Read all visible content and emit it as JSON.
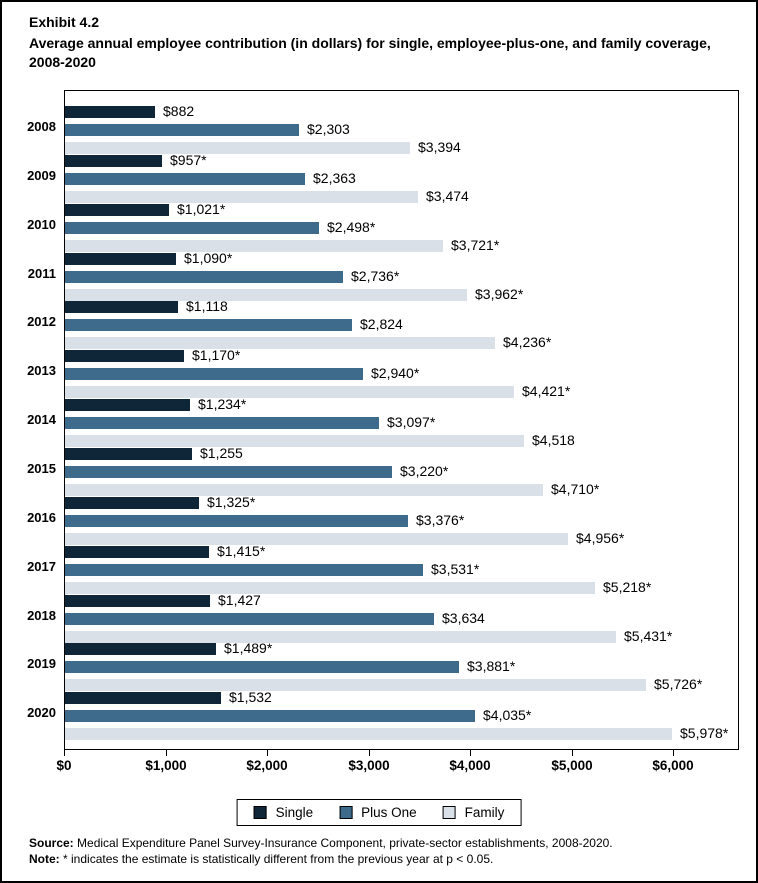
{
  "header": {
    "exhibit": "Exhibit 4.2",
    "title": "Average annual employee contribution (in dollars) for single, employee-plus-one, and family coverage, 2008-2020"
  },
  "chart_data": {
    "type": "bar",
    "orientation": "horizontal",
    "title": "Average annual employee contribution (in dollars) for single, employee-plus-one, and family coverage, 2008-2020",
    "categories": [
      "2008",
      "2009",
      "2010",
      "2011",
      "2012",
      "2013",
      "2014",
      "2015",
      "2016",
      "2017",
      "2018",
      "2019",
      "2020"
    ],
    "series": [
      {
        "name": "Single",
        "color": "#0f2638",
        "values": [
          882,
          957,
          1021,
          1090,
          1118,
          1170,
          1234,
          1255,
          1325,
          1415,
          1427,
          1489,
          1532
        ],
        "labels": [
          "$882",
          "$957*",
          "$1,021*",
          "$1,090*",
          "$1,118",
          "$1,170*",
          "$1,234*",
          "$1,255",
          "$1,325*",
          "$1,415*",
          "$1,427",
          "$1,489*",
          "$1,532"
        ]
      },
      {
        "name": "Plus One",
        "color": "#3e6a8b",
        "values": [
          2303,
          2363,
          2498,
          2736,
          2824,
          2940,
          3097,
          3220,
          3376,
          3531,
          3634,
          3881,
          4035
        ],
        "labels": [
          "$2,303",
          "$2,363",
          "$2,498*",
          "$2,736*",
          "$2,824",
          "$2,940*",
          "$3,097*",
          "$3,220*",
          "$3,376*",
          "$3,531*",
          "$3,634",
          "$3,881*",
          "$4,035*"
        ]
      },
      {
        "name": "Family",
        "color": "#d9e0e7",
        "values": [
          3394,
          3474,
          3721,
          3962,
          4236,
          4421,
          4518,
          4710,
          4956,
          5218,
          5431,
          5726,
          5978
        ],
        "labels": [
          "$3,394",
          "$3,474",
          "$3,721*",
          "$3,962*",
          "$4,236*",
          "$4,421*",
          "$4,518",
          "$4,710*",
          "$4,956*",
          "$5,218*",
          "$5,431*",
          "$5,726*",
          "$5,978*"
        ]
      }
    ],
    "x_axis": {
      "tick_labels": [
        "$0",
        "$1,000",
        "$2,000",
        "$3,000",
        "$4,000",
        "$5,000",
        "$6,000"
      ],
      "tick_values": [
        0,
        1000,
        2000,
        3000,
        4000,
        5000,
        6000
      ],
      "max": 6630
    },
    "legend": {
      "position": "bottom",
      "entries": [
        "Single",
        "Plus One",
        "Family"
      ]
    },
    "grid": false
  },
  "footer": {
    "source_label": "Source:",
    "source_text": " Medical Expenditure Panel Survey-Insurance Component, private-sector establishments, 2008-2020.",
    "note_label": "Note:",
    "note_text": " * indicates the estimate is statistically different from the previous year at p < 0.05."
  }
}
